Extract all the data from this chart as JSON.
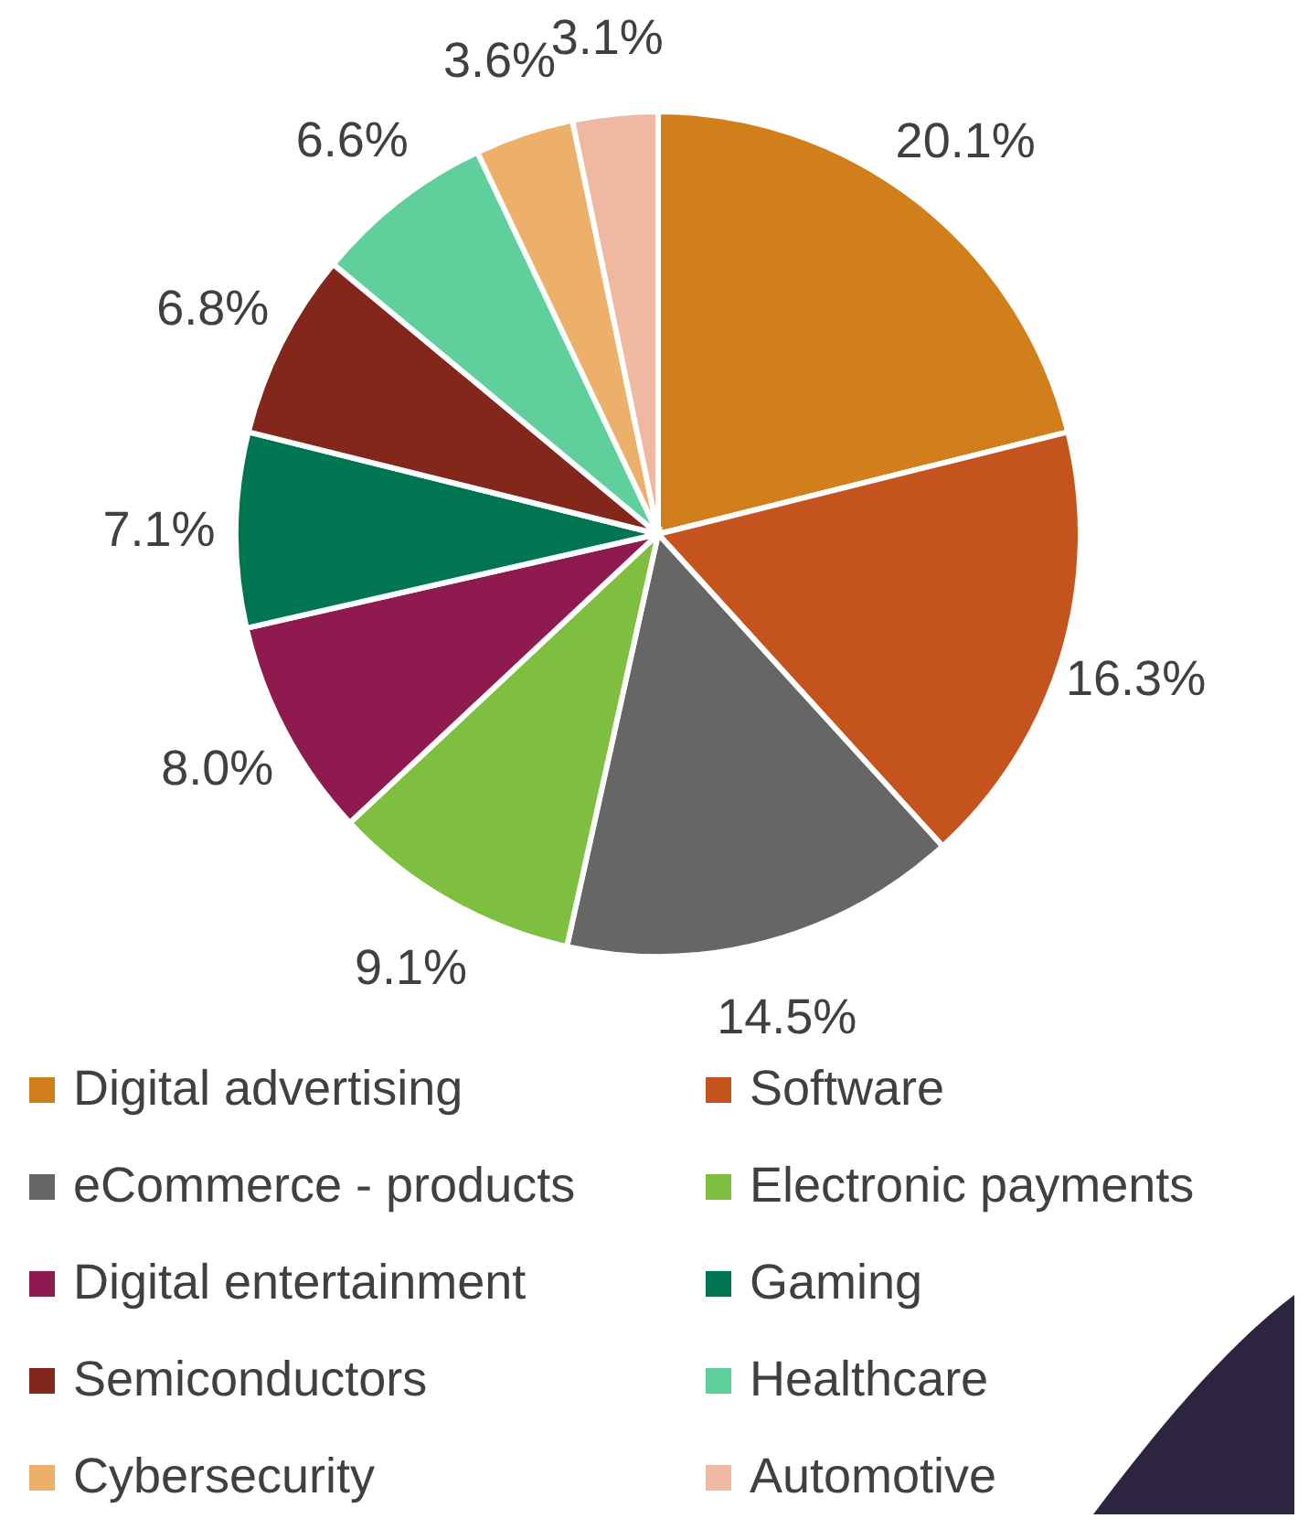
{
  "chart_data": {
    "type": "pie",
    "categories": [
      "Digital advertising",
      "Software",
      "eCommerce - products",
      "Electronic payments",
      "Digital entertainment",
      "Gaming",
      "Semiconductors",
      "Healthcare",
      "Cybersecurity",
      "Automotive"
    ],
    "values": [
      20.1,
      16.3,
      14.5,
      9.1,
      8.0,
      7.1,
      6.8,
      6.6,
      3.6,
      3.1
    ],
    "value_labels": [
      "20.1%",
      "16.3%",
      "14.5%",
      "9.1%",
      "8.0%",
      "7.1%",
      "6.8%",
      "6.6%",
      "3.6%",
      "3.1%"
    ],
    "colors": [
      "#d07f1a",
      "#c4531e",
      "#666666",
      "#7fbf3f",
      "#8e1a4f",
      "#007552",
      "#83261b",
      "#5fcf9c",
      "#edb06a",
      "#efb8a0"
    ],
    "legend": "bottom"
  }
}
